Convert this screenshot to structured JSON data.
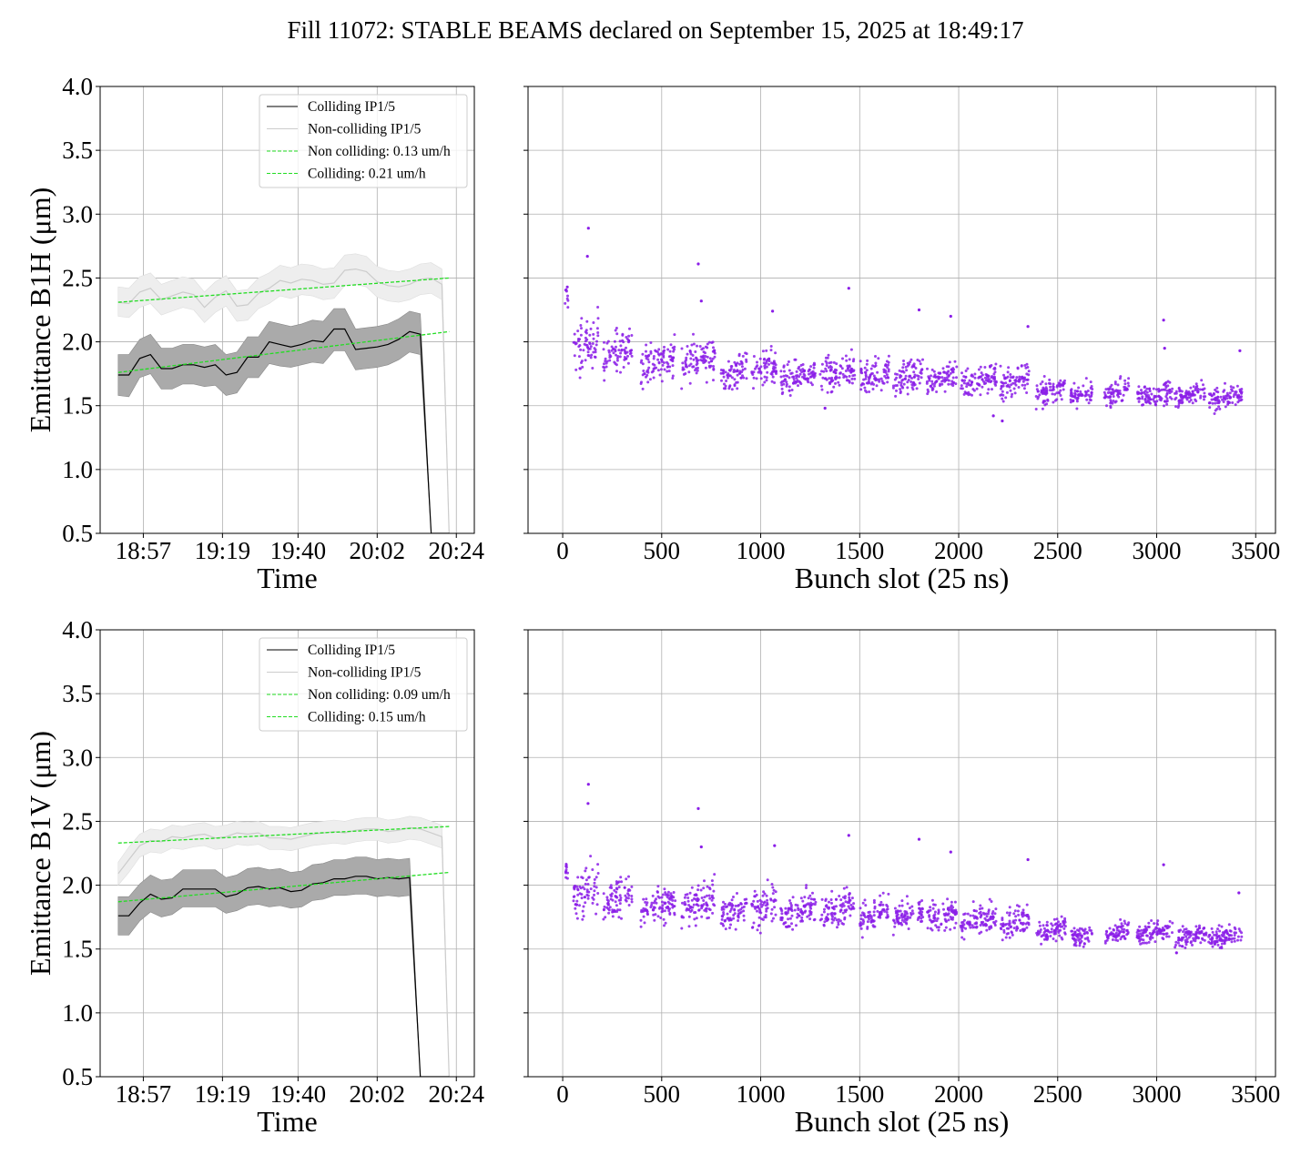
{
  "figure": {
    "title": "Fill 11072: STABLE BEAMS declared on September 15, 2025 at 18:49:17"
  },
  "colors": {
    "colliding": "#000000",
    "colliding_band": "#aaaaaa",
    "non_colliding": "#cccccc",
    "non_colliding_band": "#eeeeee",
    "fit": "#22dd22",
    "bunch_points": "#8b1ee8",
    "grid": "#b0b0b0"
  },
  "chart_data": [
    {
      "type": "line",
      "panel": "B1H-time",
      "xlabel": "Time",
      "ylabel": "Emittance B1H (μm)",
      "ylim": [
        0.5,
        4.0
      ],
      "yticks": [
        "0.5",
        "1.0",
        "1.5",
        "2.0",
        "2.5",
        "3.0",
        "3.5",
        "4.0"
      ],
      "xticks": [
        "18:57",
        "19:19",
        "19:40",
        "20:02",
        "20:24"
      ],
      "xtick_minutes": [
        57,
        79,
        100,
        122,
        144
      ],
      "xlim_minutes": [
        45,
        149
      ],
      "grid": true,
      "legend_position": "top-right",
      "x_minutes": [
        50,
        53,
        56,
        59,
        62,
        65,
        68,
        71,
        74,
        77,
        80,
        83,
        86,
        89,
        92,
        95,
        98,
        101,
        104,
        107,
        110,
        113,
        116,
        119,
        122,
        125,
        128,
        131,
        134,
        137,
        140,
        142
      ],
      "series": [
        {
          "name": "Colliding IP1/5",
          "role": "colliding",
          "values": [
            1.74,
            1.74,
            1.87,
            1.9,
            1.79,
            1.79,
            1.82,
            1.82,
            1.8,
            1.82,
            1.74,
            1.76,
            1.88,
            1.88,
            2.0,
            1.98,
            1.96,
            1.98,
            2.01,
            2.0,
            2.1,
            2.1,
            1.94,
            1.95,
            1.96,
            1.98,
            2.02,
            2.08,
            2.06,
            0.5,
            0.5,
            0.5
          ],
          "band_low": [
            1.58,
            1.57,
            1.72,
            1.75,
            1.63,
            1.63,
            1.67,
            1.67,
            1.65,
            1.66,
            1.58,
            1.6,
            1.72,
            1.72,
            1.83,
            1.81,
            1.8,
            1.82,
            1.84,
            1.83,
            1.93,
            1.93,
            1.78,
            1.79,
            1.8,
            1.82,
            1.86,
            1.92,
            1.9,
            0.5,
            0.5,
            0.5
          ],
          "band_high": [
            1.9,
            1.9,
            2.02,
            2.06,
            1.95,
            1.95,
            1.98,
            1.98,
            1.96,
            1.98,
            1.9,
            1.92,
            2.04,
            2.04,
            2.16,
            2.14,
            2.12,
            2.14,
            2.17,
            2.16,
            2.26,
            2.26,
            2.1,
            2.11,
            2.12,
            2.14,
            2.18,
            2.24,
            2.22,
            0.5,
            0.5,
            0.5
          ]
        },
        {
          "name": "Non-colliding IP1/5",
          "role": "non_colliding",
          "values": [
            2.31,
            2.3,
            2.39,
            2.42,
            2.33,
            2.36,
            2.39,
            2.37,
            2.27,
            2.35,
            2.4,
            2.28,
            2.29,
            2.38,
            2.42,
            2.48,
            2.46,
            2.49,
            2.48,
            2.45,
            2.46,
            2.56,
            2.57,
            2.55,
            2.47,
            2.44,
            2.43,
            2.45,
            2.49,
            2.5,
            2.45,
            0.5
          ],
          "band_low": [
            2.2,
            2.19,
            2.27,
            2.3,
            2.21,
            2.24,
            2.27,
            2.25,
            2.15,
            2.23,
            2.28,
            2.16,
            2.17,
            2.26,
            2.3,
            2.36,
            2.34,
            2.37,
            2.36,
            2.33,
            2.34,
            2.44,
            2.45,
            2.43,
            2.35,
            2.32,
            2.31,
            2.33,
            2.37,
            2.38,
            2.33,
            0.5
          ],
          "band_high": [
            2.43,
            2.42,
            2.51,
            2.54,
            2.45,
            2.48,
            2.51,
            2.49,
            2.39,
            2.47,
            2.52,
            2.4,
            2.41,
            2.5,
            2.54,
            2.6,
            2.58,
            2.61,
            2.6,
            2.57,
            2.58,
            2.68,
            2.69,
            2.67,
            2.59,
            2.56,
            2.55,
            2.57,
            2.61,
            2.62,
            2.57,
            0.5
          ]
        }
      ],
      "fits": [
        {
          "name": "Non colliding: 0.13 um/h",
          "x": [
            50,
            142
          ],
          "y": [
            2.31,
            2.5
          ]
        },
        {
          "name": "Colliding: 0.21 um/h",
          "x": [
            50,
            142
          ],
          "y": [
            1.76,
            2.08
          ]
        }
      ]
    },
    {
      "type": "scatter",
      "panel": "B1H-bunch",
      "xlabel": "Bunch slot (25 ns)",
      "ylabel": "",
      "ylim": [
        0.5,
        4.0
      ],
      "xlim": [
        -175,
        3600
      ],
      "xticks": [
        "0",
        "500",
        "1000",
        "1500",
        "2000",
        "2500",
        "3000",
        "3500"
      ],
      "grid": true,
      "trains": [
        {
          "x": [
            10,
            30
          ],
          "mean": 2.35,
          "spread": 0.14
        },
        {
          "x": [
            55,
            180
          ],
          "mean": 1.98,
          "spread": 0.22
        },
        {
          "x": [
            205,
            350
          ],
          "mean": 1.92,
          "spread": 0.18
        },
        {
          "x": [
            395,
            570
          ],
          "mean": 1.85,
          "spread": 0.17
        },
        {
          "x": [
            600,
            770
          ],
          "mean": 1.86,
          "spread": 0.18
        },
        {
          "x": [
            800,
            930
          ],
          "mean": 1.76,
          "spread": 0.14
        },
        {
          "x": [
            955,
            1080
          ],
          "mean": 1.78,
          "spread": 0.15
        },
        {
          "x": [
            1100,
            1280
          ],
          "mean": 1.72,
          "spread": 0.13
        },
        {
          "x": [
            1300,
            1475
          ],
          "mean": 1.76,
          "spread": 0.16
        },
        {
          "x": [
            1500,
            1650
          ],
          "mean": 1.74,
          "spread": 0.13
        },
        {
          "x": [
            1670,
            1820
          ],
          "mean": 1.73,
          "spread": 0.13
        },
        {
          "x": [
            1840,
            1990
          ],
          "mean": 1.72,
          "spread": 0.13
        },
        {
          "x": [
            2010,
            2190
          ],
          "mean": 1.7,
          "spread": 0.13
        },
        {
          "x": [
            2210,
            2355
          ],
          "mean": 1.7,
          "spread": 0.15
        },
        {
          "x": [
            2390,
            2540
          ],
          "mean": 1.61,
          "spread": 0.1
        },
        {
          "x": [
            2565,
            2675
          ],
          "mean": 1.59,
          "spread": 0.09
        },
        {
          "x": [
            2735,
            2860
          ],
          "mean": 1.61,
          "spread": 0.1
        },
        {
          "x": [
            2900,
            3080
          ],
          "mean": 1.59,
          "spread": 0.1
        },
        {
          "x": [
            3090,
            3250
          ],
          "mean": 1.58,
          "spread": 0.09
        },
        {
          "x": [
            3260,
            3430
          ],
          "mean": 1.56,
          "spread": 0.09
        }
      ],
      "outliers": [
        {
          "x": 130,
          "y": 2.89
        },
        {
          "x": 125,
          "y": 2.67
        },
        {
          "x": 685,
          "y": 2.61
        },
        {
          "x": 1445,
          "y": 2.42
        },
        {
          "x": 3035,
          "y": 2.17
        },
        {
          "x": 3040,
          "y": 1.95
        },
        {
          "x": 1800,
          "y": 2.25
        },
        {
          "x": 2350,
          "y": 2.12
        },
        {
          "x": 1960,
          "y": 2.2
        },
        {
          "x": 1060,
          "y": 2.24
        },
        {
          "x": 700,
          "y": 2.32
        },
        {
          "x": 2175,
          "y": 1.42
        },
        {
          "x": 1325,
          "y": 1.48
        },
        {
          "x": 3420,
          "y": 1.93
        },
        {
          "x": 2220,
          "y": 1.38
        }
      ]
    },
    {
      "type": "line",
      "panel": "B1V-time",
      "xlabel": "Time",
      "ylabel": "Emittance B1V (μm)",
      "ylim": [
        0.5,
        4.0
      ],
      "yticks": [
        "0.5",
        "1.0",
        "1.5",
        "2.0",
        "2.5",
        "3.0",
        "3.5",
        "4.0"
      ],
      "xticks": [
        "18:57",
        "19:19",
        "19:40",
        "20:02",
        "20:24"
      ],
      "xtick_minutes": [
        57,
        79,
        100,
        122,
        144
      ],
      "xlim_minutes": [
        45,
        149
      ],
      "grid": true,
      "legend_position": "top-right",
      "x_minutes": [
        50,
        53,
        56,
        59,
        62,
        65,
        68,
        71,
        74,
        77,
        80,
        83,
        86,
        89,
        92,
        95,
        98,
        101,
        104,
        107,
        110,
        113,
        116,
        119,
        122,
        125,
        128,
        131,
        134,
        137,
        140,
        142
      ],
      "series": [
        {
          "name": "Colliding IP1/5",
          "role": "colliding",
          "values": [
            1.76,
            1.76,
            1.86,
            1.93,
            1.89,
            1.9,
            1.97,
            1.97,
            1.97,
            1.97,
            1.91,
            1.93,
            1.98,
            1.99,
            1.97,
            1.98,
            1.95,
            1.96,
            2.01,
            2.02,
            2.05,
            2.05,
            2.07,
            2.07,
            2.05,
            2.06,
            2.05,
            2.06,
            0.5,
            0.5,
            0.5,
            0.5
          ],
          "band_low": [
            1.61,
            1.61,
            1.72,
            1.79,
            1.75,
            1.77,
            1.83,
            1.83,
            1.83,
            1.83,
            1.78,
            1.8,
            1.84,
            1.85,
            1.83,
            1.84,
            1.82,
            1.83,
            1.88,
            1.89,
            1.92,
            1.92,
            1.93,
            1.93,
            1.91,
            1.92,
            1.91,
            1.92,
            0.5,
            0.5,
            0.5,
            0.5
          ],
          "band_high": [
            1.91,
            1.91,
            2.01,
            2.08,
            2.04,
            2.05,
            2.12,
            2.12,
            2.12,
            2.12,
            2.06,
            2.08,
            2.13,
            2.14,
            2.12,
            2.13,
            2.1,
            2.11,
            2.16,
            2.17,
            2.2,
            2.2,
            2.22,
            2.22,
            2.2,
            2.21,
            2.2,
            2.21,
            0.5,
            0.5,
            0.5,
            0.5
          ]
        },
        {
          "name": "Non-colliding IP1/5",
          "role": "non_colliding",
          "values": [
            2.09,
            2.2,
            2.31,
            2.35,
            2.34,
            2.38,
            2.37,
            2.39,
            2.4,
            2.37,
            2.38,
            2.41,
            2.4,
            2.41,
            2.37,
            2.37,
            2.36,
            2.38,
            2.4,
            2.41,
            2.42,
            2.41,
            2.43,
            2.44,
            2.44,
            2.42,
            2.43,
            2.45,
            2.44,
            2.41,
            2.38,
            0.5
          ],
          "band_low": [
            2.0,
            2.1,
            2.22,
            2.26,
            2.25,
            2.29,
            2.28,
            2.3,
            2.31,
            2.28,
            2.29,
            2.32,
            2.31,
            2.32,
            2.28,
            2.28,
            2.27,
            2.29,
            2.31,
            2.32,
            2.33,
            2.32,
            2.34,
            2.35,
            2.35,
            2.33,
            2.34,
            2.36,
            2.35,
            2.32,
            2.29,
            0.5
          ],
          "band_high": [
            2.18,
            2.3,
            2.4,
            2.44,
            2.43,
            2.47,
            2.46,
            2.48,
            2.49,
            2.46,
            2.47,
            2.5,
            2.49,
            2.5,
            2.46,
            2.46,
            2.45,
            2.47,
            2.49,
            2.5,
            2.51,
            2.5,
            2.52,
            2.53,
            2.53,
            2.51,
            2.52,
            2.54,
            2.53,
            2.5,
            2.47,
            0.5
          ]
        }
      ],
      "fits": [
        {
          "name": "Non colliding: 0.09 um/h",
          "x": [
            50,
            142
          ],
          "y": [
            2.33,
            2.46
          ]
        },
        {
          "name": "Colliding: 0.15 um/h",
          "x": [
            50,
            142
          ],
          "y": [
            1.87,
            2.1
          ]
        }
      ]
    },
    {
      "type": "scatter",
      "panel": "B1V-bunch",
      "xlabel": "Bunch slot (25 ns)",
      "ylabel": "",
      "ylim": [
        0.5,
        4.0
      ],
      "xlim": [
        -175,
        3600
      ],
      "xticks": [
        "0",
        "500",
        "1000",
        "1500",
        "2000",
        "2500",
        "3000",
        "3500"
      ],
      "grid": true,
      "trains": [
        {
          "x": [
            10,
            30
          ],
          "mean": 2.1,
          "spread": 0.1
        },
        {
          "x": [
            55,
            180
          ],
          "mean": 1.95,
          "spread": 0.2
        },
        {
          "x": [
            205,
            350
          ],
          "mean": 1.9,
          "spread": 0.17
        },
        {
          "x": [
            395,
            570
          ],
          "mean": 1.84,
          "spread": 0.15
        },
        {
          "x": [
            600,
            770
          ],
          "mean": 1.86,
          "spread": 0.17
        },
        {
          "x": [
            800,
            930
          ],
          "mean": 1.8,
          "spread": 0.15
        },
        {
          "x": [
            955,
            1080
          ],
          "mean": 1.83,
          "spread": 0.16
        },
        {
          "x": [
            1100,
            1280
          ],
          "mean": 1.8,
          "spread": 0.14
        },
        {
          "x": [
            1300,
            1475
          ],
          "mean": 1.82,
          "spread": 0.15
        },
        {
          "x": [
            1500,
            1650
          ],
          "mean": 1.77,
          "spread": 0.14
        },
        {
          "x": [
            1670,
            1820
          ],
          "mean": 1.77,
          "spread": 0.13
        },
        {
          "x": [
            1840,
            1990
          ],
          "mean": 1.76,
          "spread": 0.13
        },
        {
          "x": [
            2010,
            2190
          ],
          "mean": 1.72,
          "spread": 0.12
        },
        {
          "x": [
            2210,
            2355
          ],
          "mean": 1.71,
          "spread": 0.13
        },
        {
          "x": [
            2390,
            2540
          ],
          "mean": 1.65,
          "spread": 0.09
        },
        {
          "x": [
            2565,
            2675
          ],
          "mean": 1.61,
          "spread": 0.08
        },
        {
          "x": [
            2735,
            2860
          ],
          "mean": 1.63,
          "spread": 0.09
        },
        {
          "x": [
            2900,
            3080
          ],
          "mean": 1.63,
          "spread": 0.09
        },
        {
          "x": [
            3090,
            3250
          ],
          "mean": 1.6,
          "spread": 0.08
        },
        {
          "x": [
            3260,
            3430
          ],
          "mean": 1.6,
          "spread": 0.09
        }
      ],
      "outliers": [
        {
          "x": 130,
          "y": 2.79
        },
        {
          "x": 128,
          "y": 2.64
        },
        {
          "x": 685,
          "y": 2.6
        },
        {
          "x": 1445,
          "y": 2.39
        },
        {
          "x": 3035,
          "y": 2.16
        },
        {
          "x": 1800,
          "y": 2.36
        },
        {
          "x": 1960,
          "y": 2.26
        },
        {
          "x": 1070,
          "y": 2.31
        },
        {
          "x": 2350,
          "y": 2.2
        },
        {
          "x": 700,
          "y": 2.3
        },
        {
          "x": 3415,
          "y": 1.94
        },
        {
          "x": 3100,
          "y": 1.47
        }
      ]
    }
  ],
  "legends": [
    {
      "items": [
        "Colliding IP1/5",
        "Non-colliding IP1/5",
        "Non colliding: 0.13 um/h",
        "Colliding: 0.21 um/h"
      ]
    },
    {
      "items": [
        "Colliding IP1/5",
        "Non-colliding IP1/5",
        "Non colliding: 0.09 um/h",
        "Colliding: 0.15 um/h"
      ]
    }
  ]
}
